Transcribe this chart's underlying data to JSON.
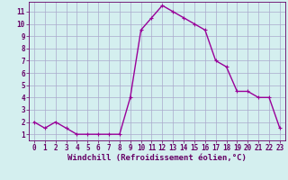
{
  "xlabel": "Windchill (Refroidissement éolien,°C)",
  "x": [
    0,
    1,
    2,
    3,
    4,
    5,
    6,
    7,
    8,
    9,
    10,
    11,
    12,
    13,
    14,
    15,
    16,
    17,
    18,
    19,
    20,
    21,
    22,
    23
  ],
  "y": [
    2.0,
    1.5,
    2.0,
    1.5,
    1.0,
    1.0,
    1.0,
    1.0,
    1.0,
    4.0,
    9.5,
    10.5,
    11.5,
    11.0,
    10.5,
    10.0,
    9.5,
    7.0,
    6.5,
    4.5,
    4.5,
    4.0,
    4.0,
    1.5
  ],
  "line_color": "#990099",
  "marker": "+",
  "marker_size": 3,
  "bg_color": "#d4efef",
  "grid_color": "#aaaacc",
  "axis_color": "#660066",
  "ylim": [
    0.5,
    11.8
  ],
  "xlim": [
    -0.5,
    23.5
  ],
  "yticks": [
    1,
    2,
    3,
    4,
    5,
    6,
    7,
    8,
    9,
    10,
    11
  ],
  "xticks": [
    0,
    1,
    2,
    3,
    4,
    5,
    6,
    7,
    8,
    9,
    10,
    11,
    12,
    13,
    14,
    15,
    16,
    17,
    18,
    19,
    20,
    21,
    22,
    23
  ],
  "tick_fontsize": 5.5,
  "xlabel_fontsize": 6.5,
  "linewidth": 1.0
}
